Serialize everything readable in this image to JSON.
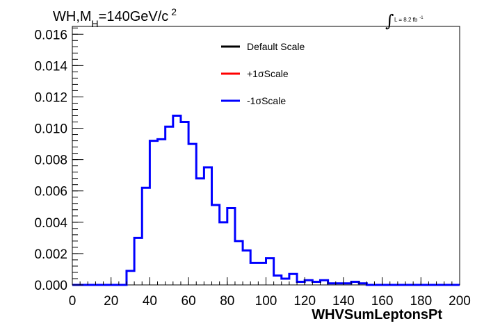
{
  "chart_data": {
    "type": "line",
    "title_parts": {
      "main": "WH,M",
      "sub": "H",
      "mid": "=140GeV/c",
      "sup": "2"
    },
    "lumi": {
      "symbol": "∫",
      "text": "L = 8.2 fb",
      "sup": "-1"
    },
    "xlabel": "WHVSumLeptonsPt",
    "ylabel": "",
    "xlim": [
      0,
      200
    ],
    "ylim": [
      0,
      0.0165
    ],
    "x_ticks": [
      "0",
      "20",
      "40",
      "60",
      "80",
      "100",
      "120",
      "140",
      "160",
      "180",
      "200"
    ],
    "y_ticks": [
      "0.000",
      "0.002",
      "0.004",
      "0.006",
      "0.008",
      "0.010",
      "0.012",
      "0.014",
      "0.016"
    ],
    "bin_width": 4,
    "bin_edges_start": 0,
    "legend": [
      {
        "label": "Default Scale",
        "color": "#000000"
      },
      {
        "label": "+1σScale",
        "color": "#ff0000"
      },
      {
        "label": "-1σScale",
        "color": "#0000ff"
      }
    ],
    "series": [
      {
        "name": "-1σScale",
        "color": "#0000ff",
        "values": [
          0,
          0,
          0,
          0,
          0,
          0,
          0,
          0.0009,
          0.003,
          0.0062,
          0.0092,
          0.0093,
          0.0101,
          0.0108,
          0.0104,
          0.009,
          0.0068,
          0.0075,
          0.0051,
          0.004,
          0.0049,
          0.0028,
          0.0022,
          0.0014,
          0.0014,
          0.0017,
          0.0006,
          0.0004,
          0.0007,
          0.0002,
          0.0003,
          0.0002,
          0.0003,
          0.0001,
          0.0001,
          0.0001,
          0.0002,
          0.0001,
          0,
          0,
          0,
          0,
          0,
          0,
          0,
          0,
          0,
          0,
          0,
          0
        ]
      }
    ],
    "grid": false,
    "legend_position": "top-center"
  }
}
